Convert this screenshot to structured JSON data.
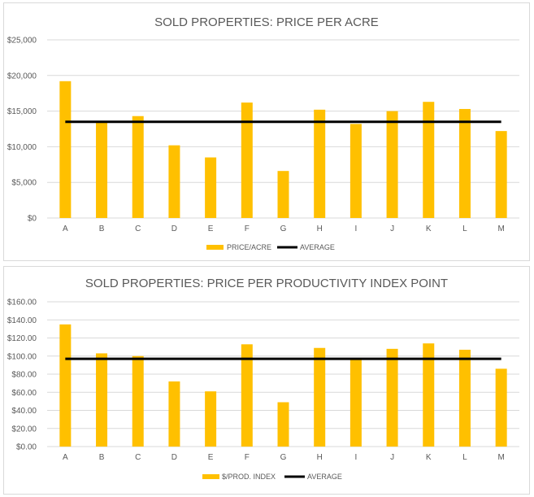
{
  "colors": {
    "bar": "#FFC000",
    "average": "#000000",
    "grid": "#D9D9D9",
    "text": "#595959"
  },
  "chart_data": [
    {
      "type": "bar",
      "title": "SOLD PROPERTIES: PRICE PER ACRE",
      "categories": [
        "A",
        "B",
        "C",
        "D",
        "E",
        "F",
        "G",
        "H",
        "I",
        "J",
        "K",
        "L",
        "M"
      ],
      "series": [
        {
          "name": "PRICE/ACRE",
          "type": "bar",
          "values": [
            19200,
            13400,
            14300,
            10200,
            8500,
            16200,
            6600,
            15200,
            13200,
            15000,
            16300,
            15300,
            12200
          ]
        },
        {
          "name": "AVERAGE",
          "type": "line",
          "values": [
            13500,
            13500,
            13500,
            13500,
            13500,
            13500,
            13500,
            13500,
            13500,
            13500,
            13500,
            13500,
            13500
          ]
        }
      ],
      "ylim": [
        0,
        25000
      ],
      "y_ticks": [
        0,
        5000,
        10000,
        15000,
        20000,
        25000
      ],
      "y_tick_labels": [
        "$0",
        "$5,000",
        "$10,000",
        "$15,000",
        "$20,000",
        "$25,000"
      ],
      "grid": true,
      "legend_position": "bottom"
    },
    {
      "type": "bar",
      "title": "SOLD PROPERTIES: PRICE PER PRODUCTIVITY INDEX  POINT",
      "categories": [
        "A",
        "B",
        "C",
        "D",
        "E",
        "F",
        "G",
        "H",
        "I",
        "J",
        "K",
        "L",
        "M"
      ],
      "series": [
        {
          "name": "$/PROD. INDEX",
          "type": "bar",
          "values": [
            135,
            103,
            100,
            72,
            61,
            113,
            49,
            109,
            96,
            108,
            114,
            107,
            86
          ]
        },
        {
          "name": "AVERAGE",
          "type": "line",
          "values": [
            97,
            97,
            97,
            97,
            97,
            97,
            97,
            97,
            97,
            97,
            97,
            97,
            97
          ]
        }
      ],
      "ylim": [
        0,
        160
      ],
      "y_ticks": [
        0,
        20,
        40,
        60,
        80,
        100,
        120,
        140,
        160
      ],
      "y_tick_labels": [
        "$0.00",
        "$20.00",
        "$40.00",
        "$60.00",
        "$80.00",
        "$100.00",
        "$120.00",
        "$140.00",
        "$160.00"
      ],
      "grid": true,
      "legend_position": "bottom"
    }
  ]
}
